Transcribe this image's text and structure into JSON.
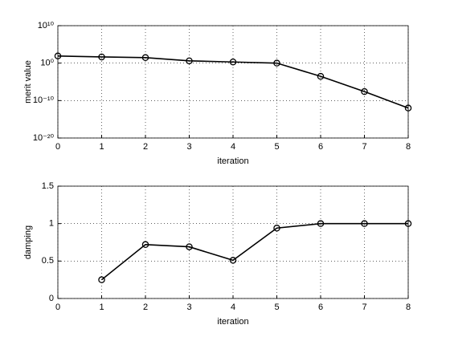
{
  "chart_data": [
    {
      "type": "line",
      "xlabel": "iteration",
      "ylabel": "merit value",
      "x": [
        0,
        1,
        2,
        3,
        4,
        5,
        6,
        7,
        8
      ],
      "series": [
        {
          "color": "#000000",
          "values": [
            80,
            45,
            30,
            4,
            2,
            1,
            0.0003,
            2.5e-08,
            1e-12
          ]
        }
      ],
      "xlim": [
        0,
        8
      ],
      "ylim": [
        1e-20,
        10000000000.0
      ],
      "log_y": true,
      "xticks": [
        0,
        1,
        2,
        3,
        4,
        5,
        6,
        7,
        8
      ],
      "yticks": [
        {
          "value": 1e-20,
          "label": "10⁻²⁰"
        },
        {
          "value": 1e-10,
          "label": "10⁻¹⁰"
        },
        {
          "value": 1,
          "label": "10⁰"
        },
        {
          "value": 10000000000.0,
          "label": "10¹⁰"
        }
      ],
      "grid": true
    },
    {
      "type": "line",
      "xlabel": "iteration",
      "ylabel": "damping",
      "x": [
        0,
        1,
        2,
        3,
        4,
        5,
        6,
        7,
        8
      ],
      "series": [
        {
          "color": "#000000",
          "values": [
            null,
            0.25,
            0.72,
            0.69,
            0.51,
            0.94,
            1,
            1,
            1
          ]
        }
      ],
      "xlim": [
        0,
        8
      ],
      "ylim": [
        0,
        1.5
      ],
      "log_y": false,
      "xticks": [
        0,
        1,
        2,
        3,
        4,
        5,
        6,
        7,
        8
      ],
      "yticks": [
        0,
        0.5,
        1,
        1.5
      ],
      "grid": true
    }
  ]
}
